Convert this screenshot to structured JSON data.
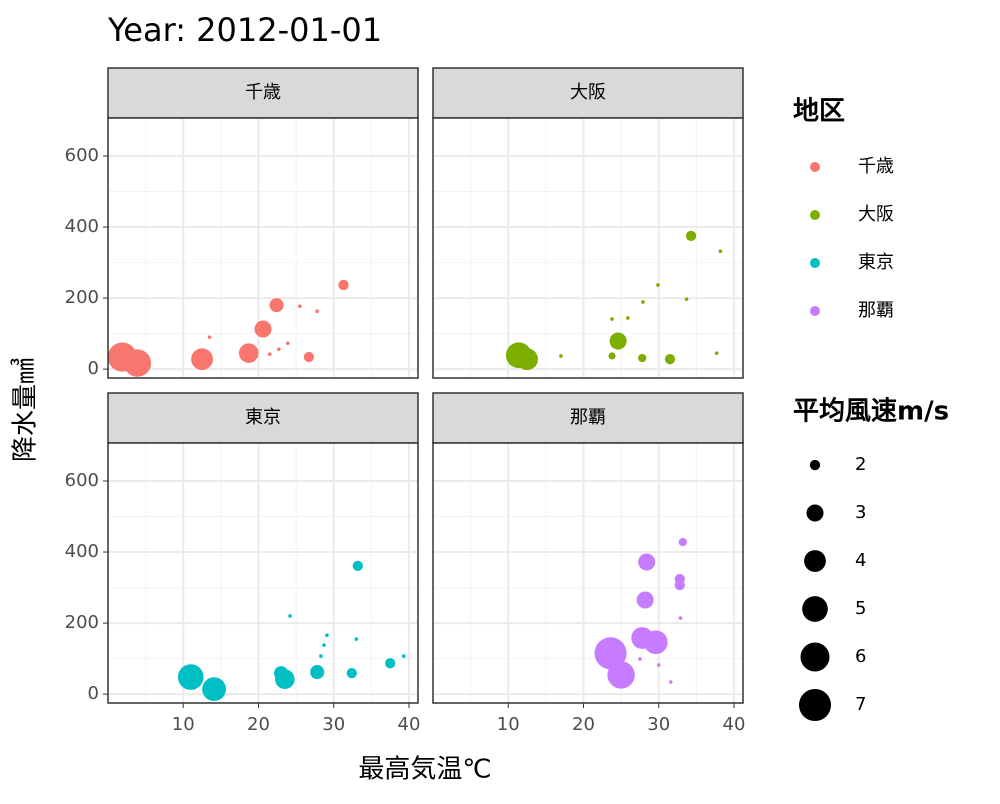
{
  "chart_data": {
    "type": "scatter",
    "title": "Year: 2012-01-01",
    "x_label": "最高気温℃",
    "y_label": "降水量㎣",
    "xlim": [
      0,
      41.2
    ],
    "ylim": [
      -25,
      707
    ],
    "xticks": [
      10,
      20,
      30,
      40
    ],
    "yticks": [
      0,
      200,
      400,
      600
    ],
    "xminorticks": [
      5,
      15,
      25,
      35
    ],
    "yminorticks": [
      100,
      300,
      500
    ],
    "grid": true,
    "legend_title": "地区",
    "size_legend_title": "平均風速m/s",
    "size_legend": [
      2,
      3,
      4,
      5,
      6,
      7
    ],
    "series": [
      {
        "name": "千歳",
        "color": "#F8766D",
        "x": [
          1.9,
          3.9,
          12.5,
          13.5,
          18.7,
          20.6,
          21.5,
          22.4,
          22.7,
          23.9,
          25.5,
          26.7,
          27.8,
          31.3
        ],
        "values": [
          34,
          17,
          28,
          90,
          45,
          113,
          42,
          180,
          56,
          73,
          177,
          34,
          163,
          237
        ],
        "sizes": [
          6,
          5.5,
          4,
          1.5,
          3.5,
          3,
          1.5,
          2.5,
          1.5,
          1.5,
          1.5,
          2,
          1.5,
          2
        ]
      },
      {
        "name": "大阪",
        "color": "#7CAE00",
        "x": [
          11.4,
          12.5,
          17.0,
          23.8,
          23.8,
          24.6,
          25.9,
          27.8,
          27.9,
          29.9,
          31.5,
          33.7,
          34.3,
          37.7,
          38.2
        ],
        "values": [
          39,
          28,
          37,
          37,
          141,
          79,
          144,
          31,
          189,
          237,
          28,
          197,
          375,
          45,
          332
        ],
        "sizes": [
          5,
          4,
          1.5,
          1.7,
          1.5,
          3,
          1.5,
          1.8,
          1.5,
          1.5,
          2,
          1.5,
          2,
          1.5,
          1.5
        ]
      },
      {
        "name": "東京",
        "color": "#00BFC4",
        "x": [
          11.0,
          14.1,
          23.0,
          23.5,
          24.2,
          27.8,
          28.3,
          28.7,
          29.1,
          32.4,
          33.0,
          33.2,
          37.5,
          39.3
        ],
        "values": [
          48,
          14,
          59,
          42,
          220,
          62,
          107,
          138,
          166,
          59,
          155,
          361,
          87,
          107
        ],
        "sizes": [
          5,
          4.5,
          2.5,
          3.5,
          1.5,
          2.5,
          1.5,
          1.5,
          1.5,
          2,
          1.5,
          2,
          2,
          1.5
        ]
      },
      {
        "name": "那覇",
        "color": "#C77CFF",
        "x": [
          23.6,
          25.0,
          27.8,
          27.5,
          28.2,
          28.4,
          29.6,
          30.0,
          31.6,
          32.8,
          32.8,
          32.9,
          33.2
        ],
        "values": [
          115,
          54,
          158,
          99,
          265,
          372,
          146,
          82,
          34,
          324,
          307,
          214,
          428
        ],
        "sizes": [
          7,
          5.5,
          4,
          1.5,
          3,
          3,
          4.5,
          1.5,
          1.5,
          2,
          2,
          1.5,
          1.8
        ]
      }
    ]
  }
}
